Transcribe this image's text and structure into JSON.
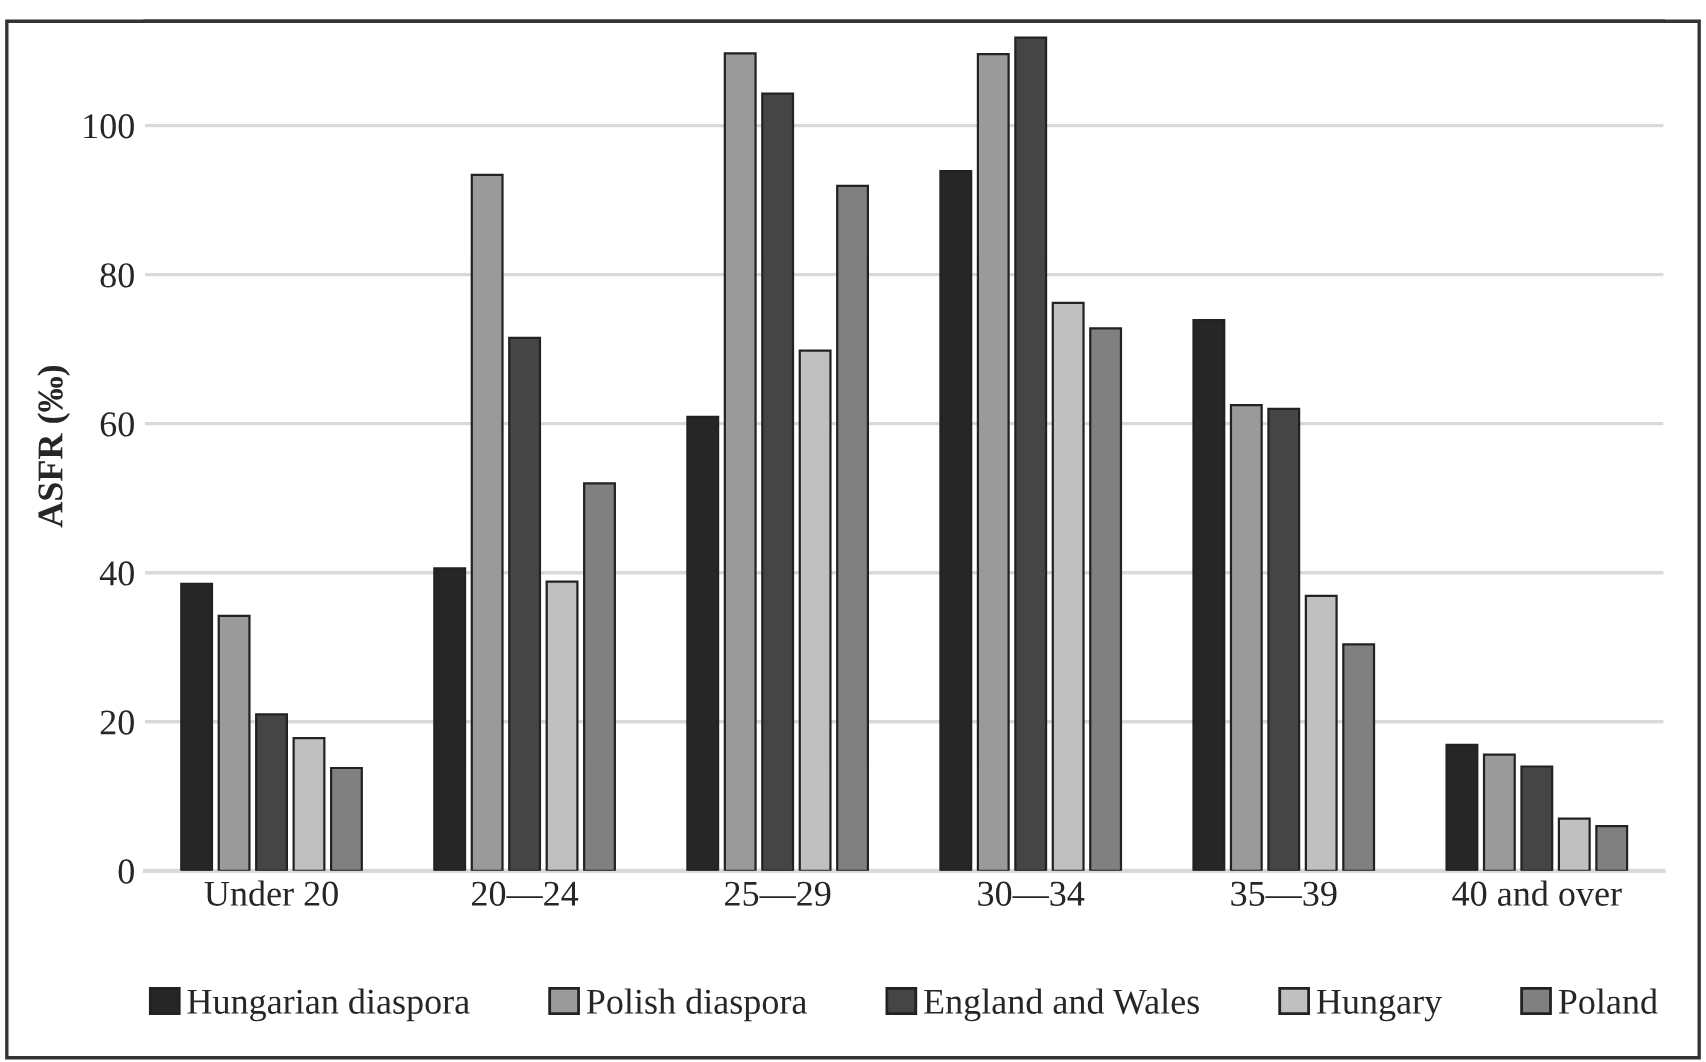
{
  "chart_data": {
    "type": "bar",
    "ylabel": "ASFR (‰)",
    "categories": [
      "Under 20",
      "20—24",
      "25—29",
      "30—34",
      "35—39",
      "40 and over"
    ],
    "series": [
      {
        "name": "Hungarian diaspora",
        "color": "#262626",
        "values": [
          38.5,
          40.6,
          60.9,
          93.9,
          73.9,
          16.9
        ]
      },
      {
        "name": "Polish diaspora",
        "color": "#9a9a9a",
        "values": [
          34.2,
          93.4,
          109.7,
          109.6,
          62.5,
          15.6
        ]
      },
      {
        "name": "England and Wales",
        "color": "#454545",
        "values": [
          21.0,
          71.5,
          104.3,
          111.8,
          62.0,
          14.0
        ]
      },
      {
        "name": "Hungary",
        "color": "#c0c0c0",
        "values": [
          17.8,
          38.8,
          69.8,
          76.2,
          36.9,
          7.0
        ]
      },
      {
        "name": "Poland",
        "color": "#808080",
        "values": [
          13.8,
          52.0,
          91.9,
          72.8,
          30.4,
          6.0
        ]
      }
    ],
    "ylim": [
      0,
      114
    ],
    "yticks": [
      0,
      20,
      40,
      60,
      80,
      100
    ],
    "grid": "y",
    "legend": "bottom"
  }
}
